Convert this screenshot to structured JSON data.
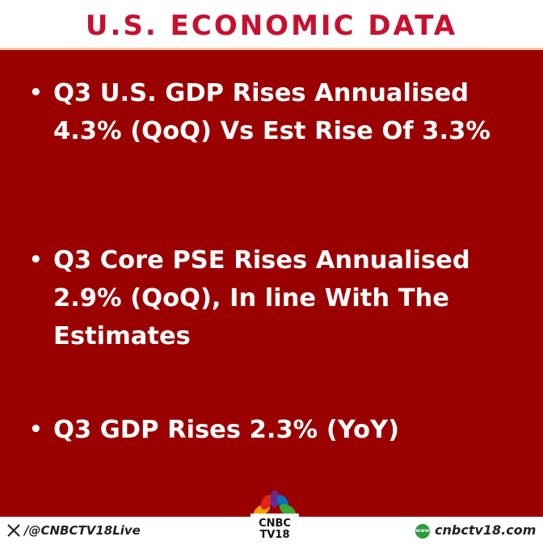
{
  "header": {
    "title": "U.S. ECONOMIC DATA"
  },
  "bullets": [
    "Q3 U.S. GDP Rises Annualised 4.3% (QoQ) Vs Est Rise Of 3.3%",
    "Q3 Core PSE Rises Annualised 2.9% (QoQ), In line With The Estimates",
    "Q3 GDP Rises 2.3% (YoY)"
  ],
  "footer": {
    "handle": "/@CNBCTV18Live",
    "logo_line1": "CNBC",
    "logo_line2": "TV18",
    "web_icon": "www",
    "website": "cnbctv18.com"
  }
}
